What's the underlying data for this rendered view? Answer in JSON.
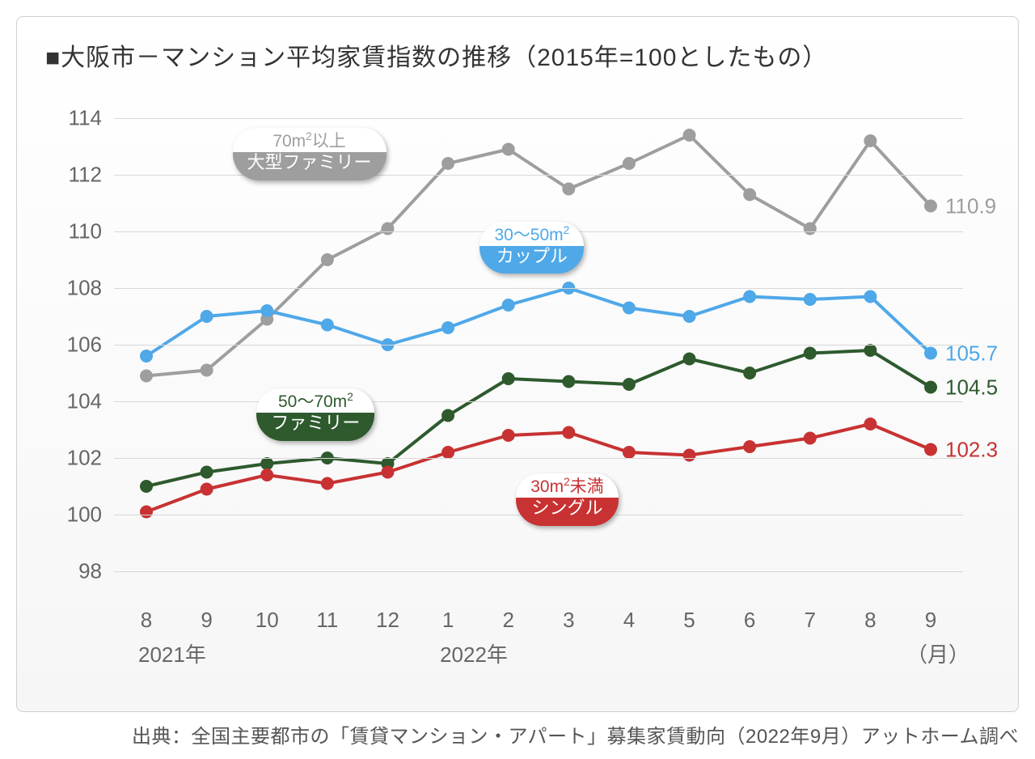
{
  "title": "■大阪市－マンション平均家賃指数の推移（2015年=100としたもの）",
  "source": "出典：全国主要都市の「賃貸マンション・アパート」募集家賃動向（2022年9月）アットホーム調べ",
  "chart": {
    "type": "line",
    "background_gradient_top": "#ffffff",
    "background_gradient_bottom": "#f6f6f6",
    "border_color": "#d0d0d0",
    "grid_color": "#d8d8d8",
    "text_color": "#666666",
    "ylim": [
      97,
      115
    ],
    "ytick_step": 2,
    "yticks": [
      98,
      100,
      102,
      104,
      106,
      108,
      110,
      112,
      114
    ],
    "x_categories": [
      "8",
      "9",
      "10",
      "11",
      "12",
      "1",
      "2",
      "3",
      "4",
      "5",
      "6",
      "7",
      "8",
      "9"
    ],
    "x_year_labels": [
      {
        "text": "2021年",
        "at_index": 0
      },
      {
        "text": "2022年",
        "at_index": 5
      }
    ],
    "x_unit_label": "（月）",
    "line_width": 4,
    "marker_radius": 8,
    "title_fontsize": 30,
    "axis_fontsize": 26,
    "series": [
      {
        "id": "large_family",
        "label_top": "70m²以上",
        "label_bottom": "大型ファミリー",
        "color": "#9e9e9e",
        "values": [
          104.9,
          105.1,
          106.9,
          109.0,
          110.1,
          112.4,
          112.9,
          111.5,
          112.4,
          113.4,
          111.3,
          110.1,
          113.2,
          110.9
        ],
        "end_value": "110.9",
        "badge_pos": {
          "x_index": 2.5,
          "y": 112.8
        }
      },
      {
        "id": "couple",
        "label_top": "30〜50m²",
        "label_bottom": "カップル",
        "color": "#4fa8e8",
        "values": [
          105.6,
          107.0,
          107.2,
          106.7,
          106.0,
          106.6,
          107.4,
          108.0,
          107.3,
          107.0,
          107.7,
          107.6,
          107.7,
          105.7
        ],
        "end_value": "105.7",
        "badge_pos": {
          "x_index": 6.6,
          "y": 109.5
        }
      },
      {
        "id": "family",
        "label_top": "50〜70m²",
        "label_bottom": "ファミリー",
        "color": "#2e5a2e",
        "values": [
          101.0,
          101.5,
          101.8,
          102.0,
          101.8,
          103.5,
          104.8,
          104.7,
          104.6,
          105.5,
          105.0,
          105.7,
          105.8,
          104.5
        ],
        "end_value": "104.5",
        "badge_pos": {
          "x_index": 2.9,
          "y": 103.6
        }
      },
      {
        "id": "single",
        "label_top": "30m²未満",
        "label_bottom": "シングル",
        "color": "#c83232",
        "values": [
          100.1,
          100.9,
          101.4,
          101.1,
          101.5,
          102.2,
          102.8,
          102.9,
          102.2,
          102.1,
          102.4,
          102.7,
          103.2,
          102.3
        ],
        "end_value": "102.3",
        "badge_pos": {
          "x_index": 7.2,
          "y": 100.6
        }
      }
    ]
  }
}
